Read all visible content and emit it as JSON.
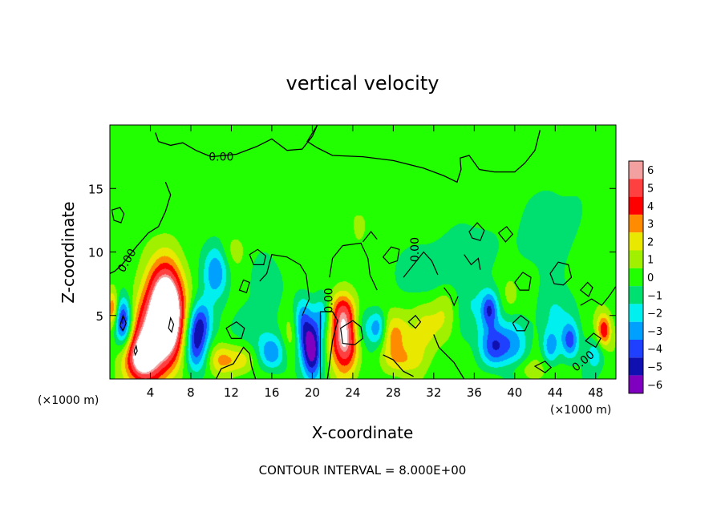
{
  "chart_data": {
    "type": "heatmap",
    "title": "vertical velocity",
    "xlabel": "X-coordinate",
    "ylabel": "Z-coordinate",
    "x_unit_left": "(×1000 m)",
    "x_unit_right": "(×1000 m)",
    "xlim": [
      0,
      50
    ],
    "ylim": [
      0,
      20
    ],
    "x_ticks": [
      4,
      8,
      12,
      16,
      20,
      24,
      28,
      32,
      36,
      40,
      44,
      48
    ],
    "y_ticks": [
      5,
      10,
      15
    ],
    "footer": "CONTOUR INTERVAL = 8.000E+00",
    "contour_labels": [
      {
        "text": "0.00",
        "x": 11.0,
        "z": 17.5
      },
      {
        "text": "0.00",
        "x": 2.0,
        "z": 9.5
      },
      {
        "text": "0.00",
        "x": 22.0,
        "z": 6.5
      },
      {
        "text": "0.00",
        "x": 30.5,
        "z": 10.5
      },
      {
        "text": "0.00",
        "x": 47.0,
        "z": 1.5
      }
    ],
    "colorbar": {
      "levels": [
        6,
        5,
        4,
        3,
        2,
        1,
        0,
        -1,
        -2,
        -3,
        -4,
        -5,
        -6
      ],
      "colors": [
        "#f2a0a0",
        "#ff4040",
        "#ff0000",
        "#ff8c00",
        "#e8e800",
        "#a0f000",
        "#22ff00",
        "#00e070",
        "#00f0f0",
        "#00a0ff",
        "#2040ff",
        "#1010b0",
        "#8000c0"
      ]
    },
    "blobs": [
      {
        "x": 4.0,
        "z": 3.0,
        "v": 6.5,
        "sx": 1.4,
        "sz": 2.4
      },
      {
        "x": 6.0,
        "z": 5.0,
        "v": 6.5,
        "sx": 1.1,
        "sz": 2.6
      },
      {
        "x": 3.0,
        "z": 1.5,
        "v": 4.0,
        "sx": 1.0,
        "sz": 1.2
      },
      {
        "x": 5.0,
        "z": 7.0,
        "v": 3.0,
        "sx": 1.2,
        "sz": 2.0
      },
      {
        "x": 1.3,
        "z": 4.5,
        "v": -5.5,
        "sx": 0.6,
        "sz": 1.3
      },
      {
        "x": 0.3,
        "z": 5.5,
        "v": 3.5,
        "sx": 0.4,
        "sz": 1.0
      },
      {
        "x": 8.5,
        "z": 2.5,
        "v": -4.5,
        "sx": 0.8,
        "sz": 1.6
      },
      {
        "x": 9.0,
        "z": 4.5,
        "v": -3.0,
        "sx": 0.8,
        "sz": 1.2
      },
      {
        "x": 10.5,
        "z": 8.5,
        "v": -3.5,
        "sx": 0.9,
        "sz": 1.6
      },
      {
        "x": 11.0,
        "z": 1.5,
        "v": 3.0,
        "sx": 0.9,
        "sz": 0.9
      },
      {
        "x": 13.0,
        "z": 1.5,
        "v": 2.0,
        "sx": 1.0,
        "sz": 0.8
      },
      {
        "x": 14.0,
        "z": 4.0,
        "v": -1.5,
        "sx": 1.2,
        "sz": 1.5
      },
      {
        "x": 16.0,
        "z": 2.0,
        "v": -3.5,
        "sx": 0.9,
        "sz": 1.0
      },
      {
        "x": 18.0,
        "z": 3.5,
        "v": 1.8,
        "sx": 0.6,
        "sz": 1.5
      },
      {
        "x": 20.0,
        "z": 2.2,
        "v": -6.2,
        "sx": 0.7,
        "sz": 1.6
      },
      {
        "x": 19.0,
        "z": 4.5,
        "v": -3.5,
        "sx": 0.7,
        "sz": 1.5
      },
      {
        "x": 21.0,
        "z": 5.0,
        "v": -2.5,
        "sx": 0.6,
        "sz": 1.2
      },
      {
        "x": 23.2,
        "z": 3.2,
        "v": 6.5,
        "sx": 1.0,
        "sz": 1.8
      },
      {
        "x": 23.0,
        "z": 5.5,
        "v": 2.5,
        "sx": 0.9,
        "sz": 1.0
      },
      {
        "x": 25.0,
        "z": 4.0,
        "v": -2.0,
        "sx": 0.8,
        "sz": 1.2
      },
      {
        "x": 26.5,
        "z": 4.0,
        "v": -3.5,
        "sx": 0.6,
        "sz": 1.0
      },
      {
        "x": 28.0,
        "z": 3.5,
        "v": 2.5,
        "sx": 1.2,
        "sz": 1.2
      },
      {
        "x": 29.0,
        "z": 1.5,
        "v": 2.0,
        "sx": 1.4,
        "sz": 0.8
      },
      {
        "x": 31.0,
        "z": 4.0,
        "v": 2.0,
        "sx": 0.9,
        "sz": 1.5
      },
      {
        "x": 33.0,
        "z": 5.0,
        "v": 1.5,
        "sx": 1.0,
        "sz": 1.8
      },
      {
        "x": 35.5,
        "z": 5.0,
        "v": -1.5,
        "sx": 1.2,
        "sz": 2.0
      },
      {
        "x": 37.5,
        "z": 5.5,
        "v": -4.0,
        "sx": 0.6,
        "sz": 1.0
      },
      {
        "x": 38.0,
        "z": 2.5,
        "v": -4.0,
        "sx": 1.0,
        "sz": 1.2
      },
      {
        "x": 40.0,
        "z": 3.0,
        "v": -2.5,
        "sx": 1.0,
        "sz": 1.5
      },
      {
        "x": 39.5,
        "z": 6.5,
        "v": 1.0,
        "sx": 0.6,
        "sz": 1.2
      },
      {
        "x": 43.5,
        "z": 2.5,
        "v": -3.0,
        "sx": 0.6,
        "sz": 1.0
      },
      {
        "x": 45.5,
        "z": 3.0,
        "v": -3.5,
        "sx": 0.6,
        "sz": 1.0
      },
      {
        "x": 44.0,
        "z": 5.0,
        "v": -1.5,
        "sx": 1.2,
        "sz": 1.5
      },
      {
        "x": 48.8,
        "z": 3.8,
        "v": 4.5,
        "sx": 0.5,
        "sz": 0.9
      },
      {
        "x": 48.0,
        "z": 2.0,
        "v": -2.0,
        "sx": 0.7,
        "sz": 1.0
      },
      {
        "x": 41.0,
        "z": 0.8,
        "v": 1.2,
        "sx": 1.5,
        "sz": 0.6
      },
      {
        "x": 12.0,
        "z": 10.0,
        "v": 1.0,
        "sx": 1.0,
        "sz": 1.0
      },
      {
        "x": 36.0,
        "z": 10.5,
        "v": -0.8,
        "sx": 3.0,
        "sz": 1.5
      },
      {
        "x": 24.0,
        "z": 13.0,
        "v": 0.4,
        "sx": 6.0,
        "sz": 3.0
      },
      {
        "x": 44.0,
        "z": 12.0,
        "v": -0.9,
        "sx": 2.5,
        "sz": 3.0
      },
      {
        "x": 32.0,
        "z": 8.5,
        "v": -1.6,
        "sx": 2.5,
        "sz": 1.5
      },
      {
        "x": 15.5,
        "z": 8.0,
        "v": -1.0,
        "sx": 1.2,
        "sz": 1.5
      }
    ],
    "contours": [
      [
        [
          4.5,
          19.4
        ],
        [
          4.8,
          18.7
        ],
        [
          6.0,
          18.4
        ],
        [
          7.2,
          18.6
        ],
        [
          8.5,
          18.0
        ],
        [
          10.0,
          17.5
        ],
        [
          12.5,
          17.7
        ],
        [
          14.5,
          18.3
        ],
        [
          16.0,
          18.9
        ],
        [
          17.5,
          18.0
        ],
        [
          19.0,
          18.1
        ],
        [
          20.0,
          19.1
        ],
        [
          20.5,
          20.0
        ]
      ],
      [
        [
          20.5,
          20.0
        ],
        [
          19.5,
          18.7
        ],
        [
          20.5,
          18.2
        ],
        [
          22.0,
          17.6
        ],
        [
          25.0,
          17.5
        ],
        [
          28.0,
          17.2
        ],
        [
          31.0,
          16.6
        ],
        [
          33.0,
          16.0
        ],
        [
          34.3,
          15.5
        ],
        [
          34.7,
          16.5
        ],
        [
          34.6,
          17.4
        ],
        [
          35.5,
          17.6
        ],
        [
          36.5,
          16.5
        ],
        [
          38.0,
          16.3
        ],
        [
          40.0,
          16.3
        ],
        [
          41.0,
          17.0
        ],
        [
          42.0,
          18.0
        ],
        [
          42.5,
          19.6
        ]
      ],
      [
        [
          5.5,
          15.5
        ],
        [
          6.0,
          14.5
        ],
        [
          5.5,
          13.2
        ],
        [
          4.8,
          12.0
        ],
        [
          3.8,
          11.5
        ],
        [
          2.6,
          10.4
        ],
        [
          1.2,
          9.0
        ],
        [
          0.5,
          8.5
        ],
        [
          0,
          8.3
        ]
      ],
      [
        [
          10.5,
          0
        ],
        [
          11.0,
          0.8
        ],
        [
          12.2,
          1.2
        ],
        [
          13.2,
          2.5
        ],
        [
          13.8,
          2.0
        ],
        [
          14.0,
          1.0
        ],
        [
          14.4,
          0
        ]
      ],
      [
        [
          20.8,
          0
        ],
        [
          20.8,
          2.5
        ],
        [
          20.8,
          5.3
        ],
        [
          22.0,
          5.3
        ],
        [
          22.5,
          4.6
        ],
        [
          22.0,
          3.0
        ],
        [
          21.7,
          1.2
        ],
        [
          21.5,
          0
        ]
      ],
      [
        [
          27.0,
          1.9
        ],
        [
          28.0,
          1.5
        ],
        [
          29.0,
          0.6
        ],
        [
          30.0,
          0.2
        ]
      ],
      [
        [
          35.0,
          0
        ],
        [
          34.0,
          1.3
        ],
        [
          32.5,
          2.5
        ],
        [
          32.0,
          3.5
        ]
      ]
    ],
    "closed_contours": [
      [
        [
          0.2,
          13.3
        ],
        [
          1.0,
          13.5
        ],
        [
          1.4,
          13.0
        ],
        [
          1.1,
          12.3
        ],
        [
          0.4,
          12.5
        ]
      ],
      [
        [
          1.0,
          4.2
        ],
        [
          1.3,
          5.0
        ],
        [
          1.6,
          4.4
        ],
        [
          1.3,
          3.8
        ]
      ],
      [
        [
          5.8,
          4.0
        ],
        [
          6.0,
          4.8
        ],
        [
          6.3,
          4.3
        ],
        [
          6.1,
          3.7
        ]
      ],
      [
        [
          2.4,
          2.2
        ],
        [
          2.6,
          2.6
        ],
        [
          2.7,
          2.2
        ],
        [
          2.5,
          1.9
        ]
      ],
      [
        [
          22.8,
          4.0
        ],
        [
          24.0,
          4.6
        ],
        [
          24.8,
          4.1
        ],
        [
          25.0,
          3.2
        ],
        [
          24.2,
          2.7
        ],
        [
          23.0,
          2.8
        ]
      ],
      [
        [
          11.5,
          4.0
        ],
        [
          12.5,
          4.5
        ],
        [
          13.3,
          4.0
        ],
        [
          13.0,
          3.2
        ],
        [
          12.0,
          3.2
        ]
      ],
      [
        [
          12.8,
          7.0
        ],
        [
          13.2,
          7.8
        ],
        [
          13.8,
          7.6
        ],
        [
          13.5,
          6.8
        ]
      ],
      [
        [
          13.8,
          9.8
        ],
        [
          14.6,
          10.2
        ],
        [
          15.4,
          9.7
        ],
        [
          15.2,
          9.0
        ],
        [
          14.2,
          9.0
        ]
      ],
      [
        [
          27.0,
          9.6
        ],
        [
          27.8,
          10.4
        ],
        [
          28.6,
          10.2
        ],
        [
          28.4,
          9.3
        ],
        [
          27.6,
          9.1
        ]
      ],
      [
        [
          35.5,
          11.6
        ],
        [
          36.3,
          12.3
        ],
        [
          37.0,
          11.7
        ],
        [
          36.6,
          10.9
        ],
        [
          35.8,
          11.1
        ]
      ],
      [
        [
          38.4,
          11.5
        ],
        [
          39.2,
          12.0
        ],
        [
          39.8,
          11.4
        ],
        [
          39.1,
          10.8
        ]
      ],
      [
        [
          40.0,
          7.6
        ],
        [
          40.8,
          8.4
        ],
        [
          41.6,
          8.0
        ],
        [
          41.4,
          7.0
        ],
        [
          40.5,
          7.0
        ]
      ],
      [
        [
          43.5,
          8.3
        ],
        [
          44.3,
          9.2
        ],
        [
          45.3,
          9.0
        ],
        [
          45.6,
          8.0
        ],
        [
          44.8,
          7.4
        ],
        [
          43.9,
          7.5
        ]
      ],
      [
        [
          46.5,
          7.0
        ],
        [
          47.2,
          7.6
        ],
        [
          47.7,
          7.2
        ],
        [
          47.3,
          6.5
        ]
      ],
      [
        [
          39.8,
          4.4
        ],
        [
          40.6,
          5.0
        ],
        [
          41.4,
          4.5
        ],
        [
          41.0,
          3.8
        ],
        [
          40.2,
          3.8
        ]
      ],
      [
        [
          42.0,
          1.0
        ],
        [
          43.0,
          1.4
        ],
        [
          43.6,
          0.9
        ],
        [
          43.0,
          0.5
        ]
      ],
      [
        [
          47.0,
          3.0
        ],
        [
          47.8,
          3.6
        ],
        [
          48.5,
          3.2
        ],
        [
          48.0,
          2.5
        ]
      ],
      [
        [
          29.5,
          4.5
        ],
        [
          30.2,
          5.0
        ],
        [
          30.7,
          4.5
        ],
        [
          30.2,
          4.0
        ]
      ]
    ],
    "contour_scribbles": [
      [
        [
          14.8,
          7.7
        ],
        [
          15.5,
          8.3
        ],
        [
          16.0,
          9.8
        ],
        [
          17.5,
          9.6
        ],
        [
          18.8,
          9.0
        ],
        [
          19.4,
          8.2
        ],
        [
          19.7,
          6.3
        ],
        [
          19.0,
          5.0
        ]
      ],
      [
        [
          21.7,
          8.0
        ],
        [
          22.0,
          9.5
        ],
        [
          23.0,
          10.5
        ],
        [
          24.8,
          10.7
        ],
        [
          25.5,
          9.5
        ],
        [
          25.7,
          8.2
        ],
        [
          26.4,
          7.0
        ]
      ],
      [
        [
          29.0,
          8.0
        ],
        [
          30.0,
          9.0
        ],
        [
          31.0,
          10.0
        ],
        [
          31.8,
          9.3
        ],
        [
          32.4,
          8.2
        ]
      ],
      [
        [
          33.0,
          7.2
        ],
        [
          33.6,
          6.6
        ],
        [
          34.0,
          5.8
        ],
        [
          34.4,
          6.5
        ]
      ],
      [
        [
          46.5,
          5.8
        ],
        [
          47.6,
          6.3
        ],
        [
          48.6,
          5.8
        ],
        [
          49.3,
          6.5
        ],
        [
          50.0,
          7.3
        ]
      ],
      [
        [
          35.0,
          9.8
        ],
        [
          35.7,
          9.0
        ],
        [
          36.4,
          9.5
        ],
        [
          36.6,
          8.6
        ]
      ],
      [
        [
          25.0,
          10.8
        ],
        [
          25.8,
          11.6
        ],
        [
          26.4,
          11.0
        ]
      ]
    ]
  }
}
